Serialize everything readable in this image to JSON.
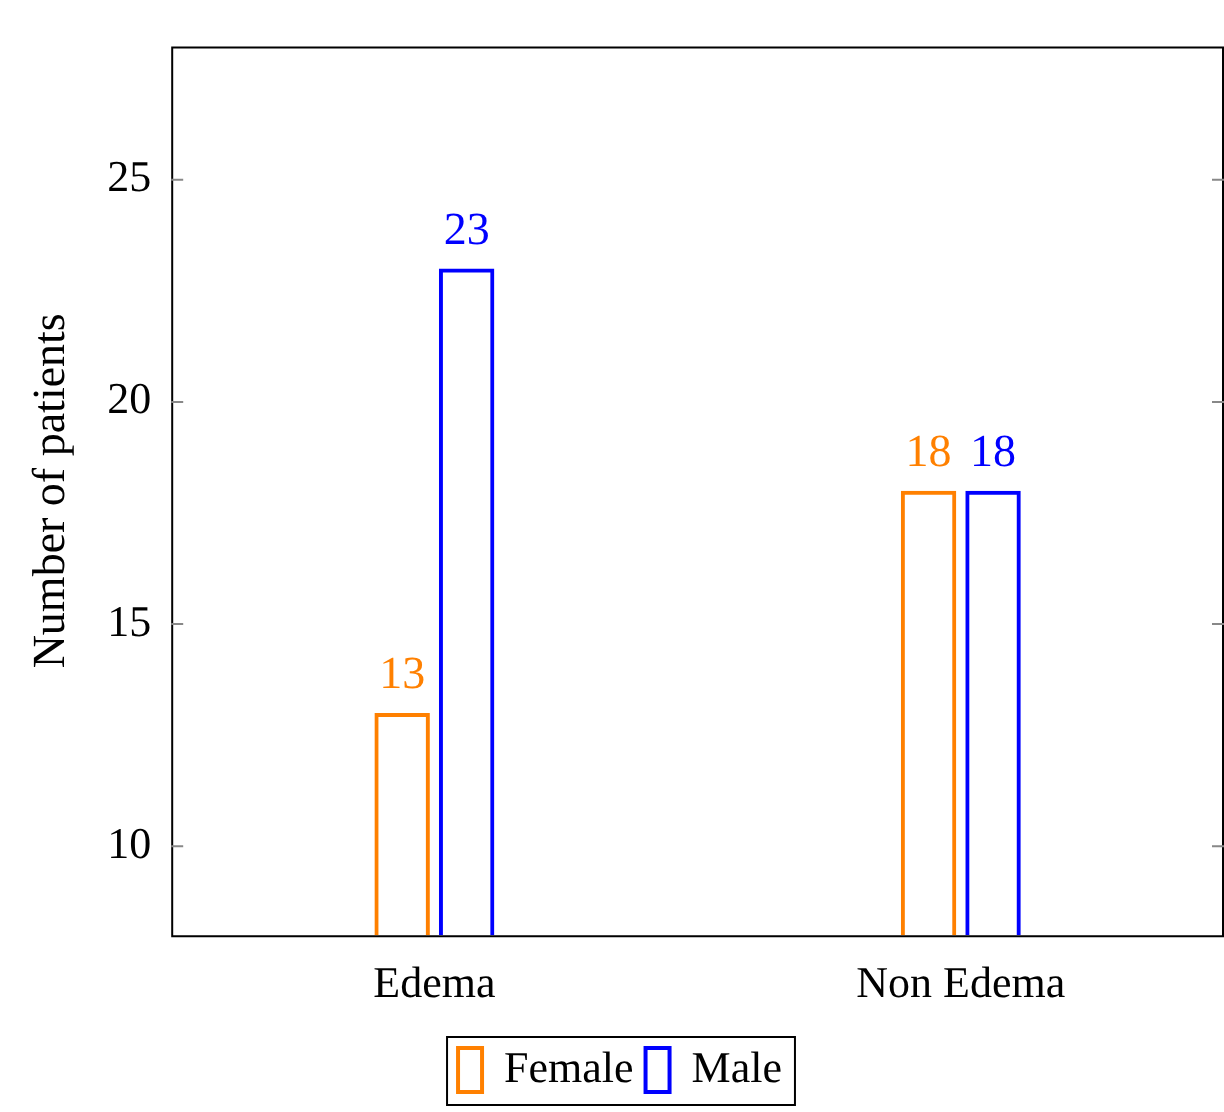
{
  "chart_data": {
    "type": "bar",
    "ylabel": "Number of patients",
    "categories": [
      "Edema",
      "Non Edema"
    ],
    "series": [
      {
        "name": "Female",
        "color": "#ff8000",
        "values": [
          13,
          18
        ]
      },
      {
        "name": "Male",
        "color": "#0000ff",
        "values": [
          23,
          18
        ]
      }
    ],
    "ylim": [
      8,
      28
    ],
    "yticks": [
      10,
      15,
      20,
      25
    ],
    "grid": false,
    "legend": "bottom",
    "data_labels": true
  }
}
